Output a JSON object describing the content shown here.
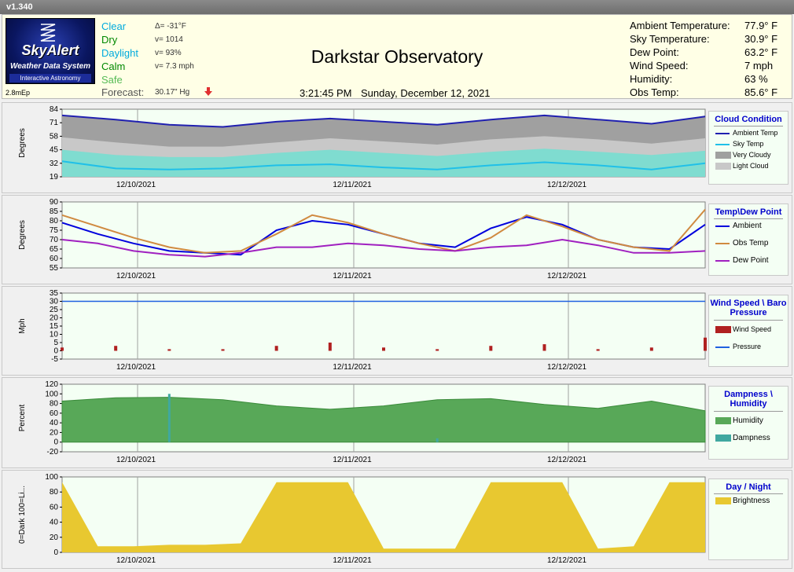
{
  "app": {
    "version": "v1.340"
  },
  "logo": {
    "name": "SkyAlert",
    "subtitle": "Weather Data System",
    "tagline": "Interactive Astronomy"
  },
  "unit_code": "2.8mEp",
  "conditions": [
    {
      "label": "Clear",
      "value": "Δ= -31°F",
      "color": "#00aadd"
    },
    {
      "label": "Dry",
      "value": "v= 1014",
      "color": "#008800"
    },
    {
      "label": "Daylight",
      "value": "v= 93%",
      "color": "#00aadd"
    },
    {
      "label": "Calm",
      "value": "v= 7.3 mph",
      "color": "#008800"
    },
    {
      "label": "Safe",
      "value": "",
      "color": "#55bb55"
    }
  ],
  "forecast": {
    "label": "Forecast:",
    "value": "30.17\" Hg",
    "arrow": "down-arrow-icon"
  },
  "observatory": {
    "name": "Darkstar Observatory",
    "time": "3:21:45 PM",
    "date": "Sunday, December 12, 2021"
  },
  "stats": [
    {
      "label": "Ambient Temperature:",
      "value": "77.9° F"
    },
    {
      "label": "Sky Temperature:",
      "value": "30.9° F"
    },
    {
      "label": "Dew Point:",
      "value": "63.2° F"
    },
    {
      "label": "Wind Speed:",
      "value": "7 mph"
    },
    {
      "label": "Humidity:",
      "value": "63 %"
    },
    {
      "label": "Obs Temp:",
      "value": "85.6° F"
    }
  ],
  "x_dates": [
    "12/10/2021",
    "12/11/2021",
    "12/12/2021"
  ],
  "chart_data": [
    {
      "type": "area",
      "legend_title": "Cloud Condition",
      "ylabel": "Degrees",
      "yticks": [
        84,
        71,
        58,
        45,
        32,
        19
      ],
      "ylim": [
        19,
        84
      ],
      "x_hours": [
        0,
        6,
        12,
        18,
        24,
        30,
        36,
        42,
        48,
        54,
        60,
        66,
        72
      ],
      "series": [
        {
          "name": "Ambient Temp",
          "color": "#2020b0",
          "values": [
            78,
            74,
            69,
            67,
            72,
            75,
            72,
            69,
            74,
            78,
            74,
            70,
            77
          ]
        },
        {
          "name": "Sky Temp",
          "color": "#20c0e8",
          "values": [
            34,
            27,
            26,
            27,
            30,
            31,
            28,
            26,
            30,
            33,
            30,
            26,
            32
          ]
        },
        {
          "name": "Very Cloudy",
          "color": "#a0a0a0",
          "values": [
            57,
            52,
            48,
            48,
            52,
            56,
            53,
            50,
            55,
            58,
            55,
            51,
            56
          ]
        },
        {
          "name": "Light Cloud",
          "color": "#c8c8c8",
          "values": [
            45,
            40,
            38,
            38,
            42,
            45,
            42,
            39,
            43,
            46,
            43,
            40,
            44
          ]
        }
      ]
    },
    {
      "type": "line",
      "legend_title": "Temp\\Dew Point",
      "ylabel": "Degrees",
      "yticks": [
        90,
        85,
        80,
        75,
        70,
        65,
        60,
        55
      ],
      "ylim": [
        55,
        90
      ],
      "x_hours": [
        0,
        4,
        8,
        12,
        16,
        20,
        24,
        28,
        32,
        36,
        40,
        44,
        48,
        52,
        56,
        60,
        64,
        68,
        72
      ],
      "series": [
        {
          "name": "Ambient",
          "color": "#0000dd",
          "values": [
            79,
            73,
            68,
            64,
            63,
            62,
            75,
            80,
            78,
            73,
            68,
            66,
            76,
            82,
            78,
            70,
            66,
            65,
            78
          ]
        },
        {
          "name": "Obs Temp",
          "color": "#d08a40",
          "values": [
            83,
            77,
            71,
            66,
            63,
            64,
            73,
            83,
            79,
            73,
            68,
            64,
            71,
            83,
            77,
            70,
            66,
            64,
            86
          ]
        },
        {
          "name": "Dew Point",
          "color": "#a020c0",
          "values": [
            70,
            68,
            64,
            62,
            61,
            63,
            66,
            66,
            68,
            67,
            65,
            64,
            66,
            67,
            70,
            67,
            63,
            63,
            64
          ]
        }
      ]
    },
    {
      "type": "bar",
      "legend_title": "Wind Speed \\ Baro Pressure",
      "ylabel": "Mph",
      "yticks": [
        35,
        30,
        25,
        20,
        15,
        10,
        5,
        0,
        -5
      ],
      "ylim": [
        -5,
        35
      ],
      "x_hours": [
        0,
        6,
        12,
        18,
        24,
        30,
        36,
        42,
        48,
        54,
        60,
        66,
        72
      ],
      "series": [
        {
          "name": "Wind Speed",
          "color": "#b02020",
          "values": [
            2,
            3,
            1,
            1,
            3,
            5,
            2,
            1,
            3,
            4,
            1,
            2,
            8
          ]
        },
        {
          "name": "Pressure",
          "color": "#2060e0",
          "values": [
            30,
            30,
            30,
            30,
            30,
            30,
            30,
            30,
            30,
            30,
            30,
            30,
            30
          ]
        }
      ]
    },
    {
      "type": "area",
      "legend_title": "Dampness \\ Humidity",
      "ylabel": "Percent",
      "yticks": [
        120,
        100,
        80,
        60,
        40,
        20,
        0,
        -20
      ],
      "ylim": [
        -20,
        120
      ],
      "x_hours": [
        0,
        6,
        12,
        18,
        24,
        30,
        36,
        42,
        48,
        54,
        60,
        66,
        72
      ],
      "series": [
        {
          "name": "Humidity",
          "color": "#58a858",
          "values": [
            85,
            92,
            93,
            88,
            75,
            68,
            75,
            88,
            90,
            78,
            70,
            85,
            65
          ]
        },
        {
          "name": "Dampness",
          "color": "#40a8a0",
          "values": [
            0,
            0,
            100,
            0,
            0,
            0,
            0,
            8,
            0,
            0,
            0,
            0,
            0
          ]
        }
      ]
    },
    {
      "type": "area",
      "legend_title": "Day / Night",
      "ylabel": "0=Dark 100=Li...",
      "yticks": [
        100,
        80,
        60,
        40,
        20,
        0
      ],
      "ylim": [
        0,
        100
      ],
      "x_hours": [
        0,
        4,
        8,
        12,
        16,
        20,
        24,
        28,
        32,
        36,
        40,
        44,
        48,
        52,
        56,
        60,
        64,
        68,
        72
      ],
      "series": [
        {
          "name": "Brightness",
          "color": "#e8c830",
          "values": [
            93,
            8,
            8,
            10,
            10,
            12,
            93,
            93,
            93,
            5,
            5,
            5,
            93,
            93,
            93,
            5,
            8,
            93,
            93
          ]
        }
      ]
    }
  ]
}
